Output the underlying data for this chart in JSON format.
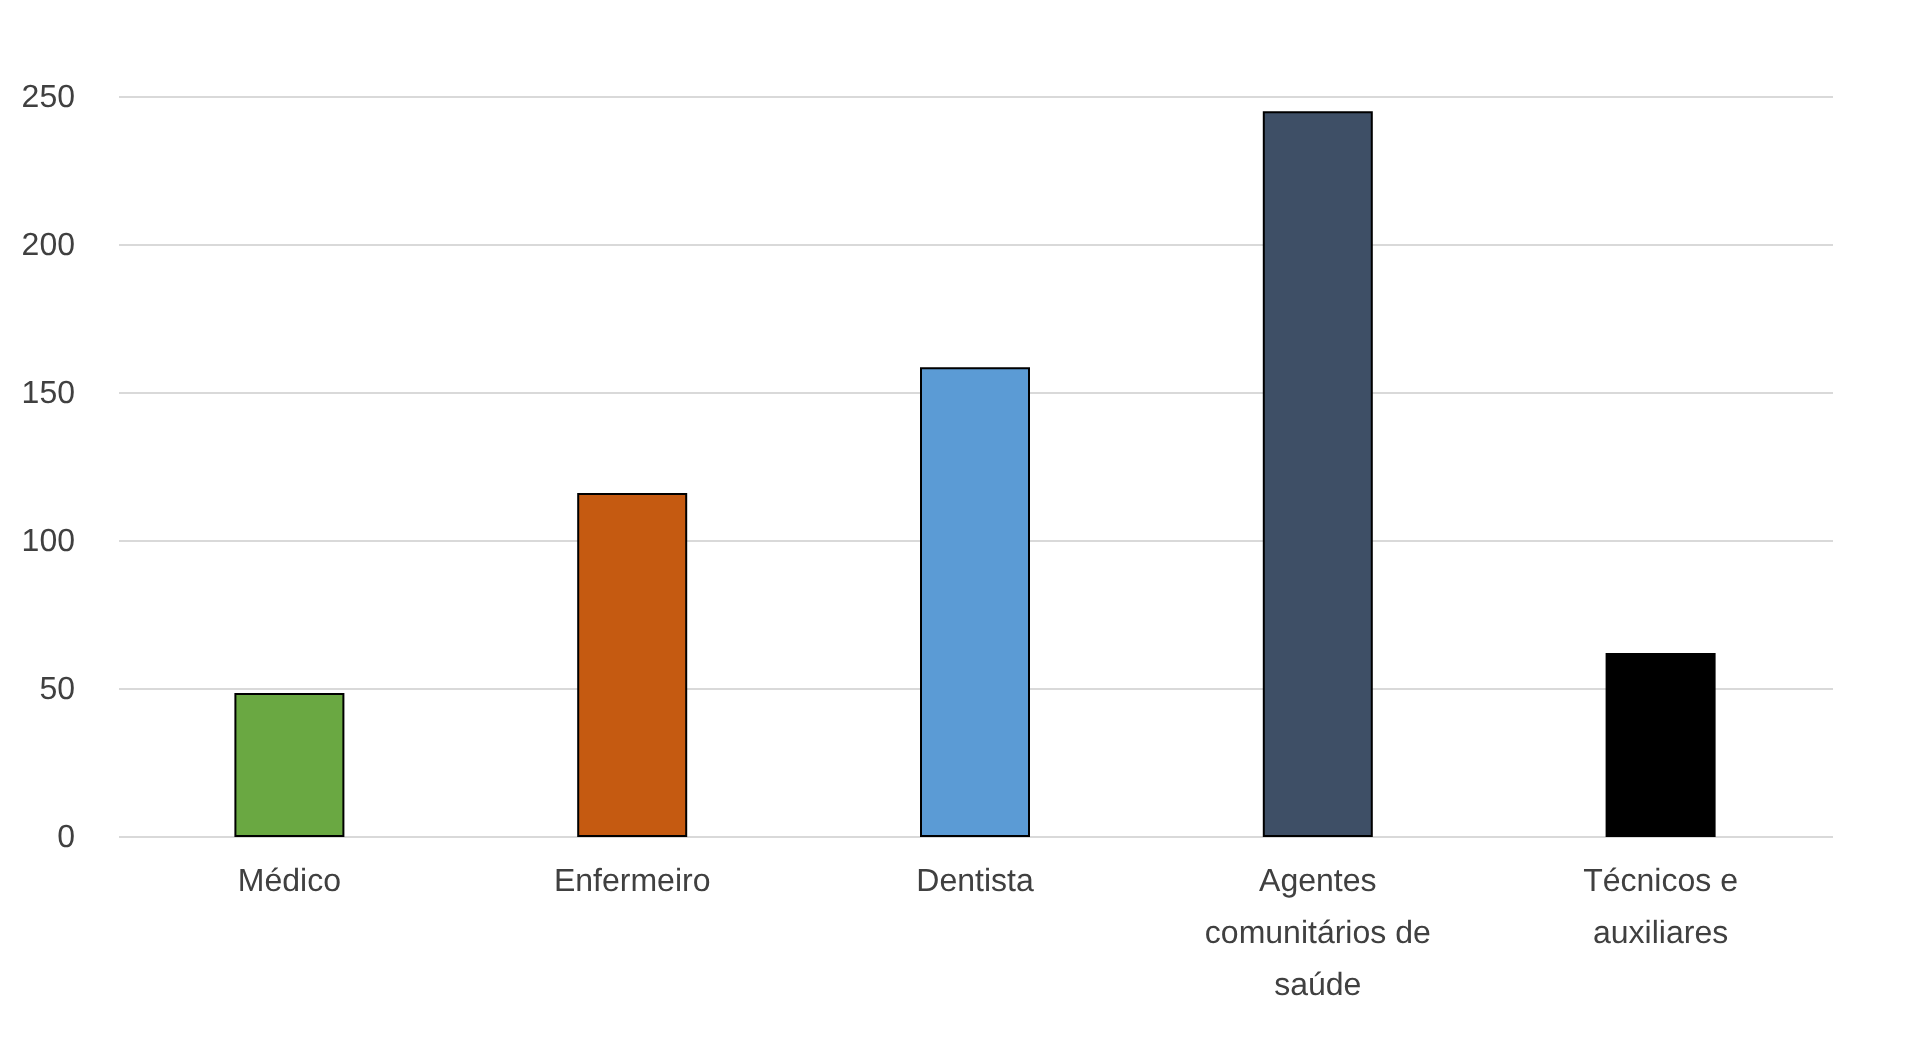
{
  "chart_data": {
    "type": "bar",
    "categories": [
      "Médico",
      "Enfermeiro",
      "Dentista",
      "Agentes comunitários de saúde",
      "Técnicos e auxiliares"
    ],
    "values": [
      48,
      115.5,
      158,
      244.5,
      61.5
    ],
    "colors": [
      "#6aa842",
      "#c55a11",
      "#5b9bd5",
      "#3e4f66",
      "#000000"
    ],
    "ylim": [
      0,
      250
    ],
    "yticks": [
      0,
      50,
      100,
      150,
      200,
      250
    ],
    "grid": "y"
  }
}
